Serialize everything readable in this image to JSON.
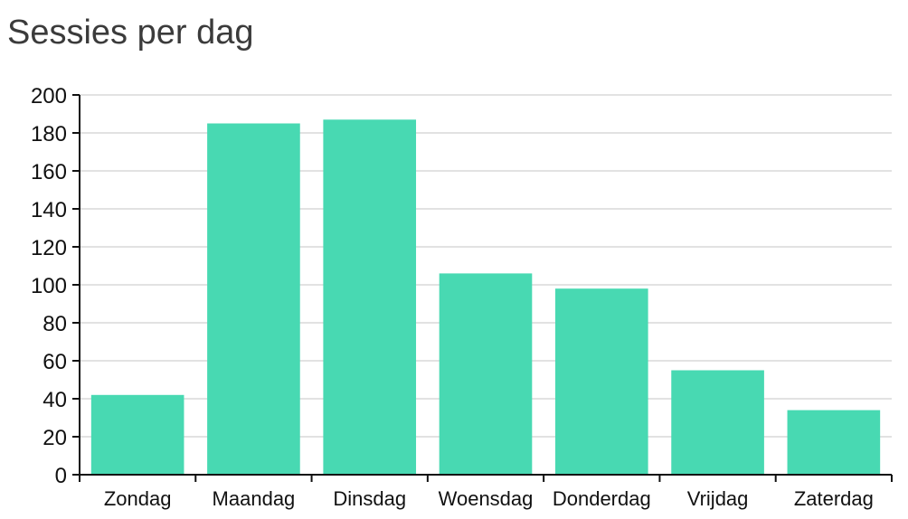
{
  "chart_data": {
    "type": "bar",
    "title": "Sessies per dag",
    "categories": [
      "Zondag",
      "Maandag",
      "Dinsdag",
      "Woensdag",
      "Donderdag",
      "Vrijdag",
      "Zaterdag"
    ],
    "values": [
      42,
      185,
      187,
      106,
      98,
      55,
      34
    ],
    "ylim": [
      0,
      200
    ],
    "yticks": [
      0,
      20,
      40,
      60,
      80,
      100,
      120,
      140,
      160,
      180,
      200
    ],
    "grid": true,
    "legend": "none",
    "colors": {
      "bar": "#48d9b2",
      "grid": "#d9d9d9",
      "axis": "#111111"
    }
  }
}
